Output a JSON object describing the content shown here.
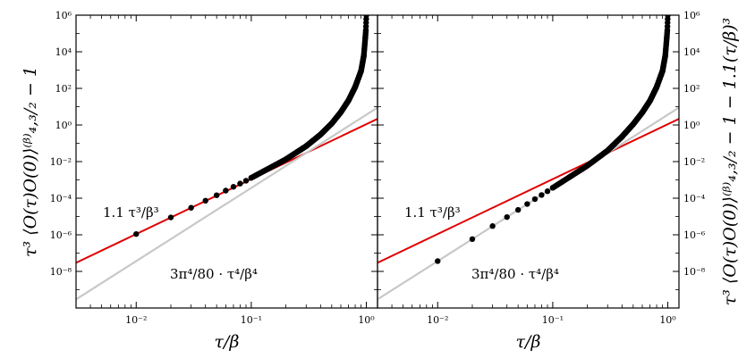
{
  "chart_data": [
    {
      "type": "scatter",
      "panel": "left",
      "xscale": "log",
      "yscale": "log",
      "xlim": [
        0.003,
        1.25
      ],
      "ylim": [
        1e-10,
        1000000.0
      ],
      "xlabel": "τ/β",
      "ylabel": "τ³ ⟨O(τ)O(0)⟩⁽ᵝ⁾₄,₃/₂ − 1",
      "x_ticks": [
        "10⁻²",
        "10⁻¹",
        "10⁰"
      ],
      "y_ticks": [
        "10⁻⁸",
        "10⁻⁶",
        "10⁻⁴",
        "10⁻²",
        "10⁰",
        "10²",
        "10⁴",
        "10⁶"
      ],
      "annotations": [
        {
          "text": "1.1 τ³/β³",
          "color": "#e00000"
        },
        {
          "text": "3π⁴/80 · τ⁴/β⁴",
          "color": "#b0b0b0"
        }
      ],
      "series": [
        {
          "kind": "line",
          "color": "#e00000",
          "coef": 1.1,
          "power": 3
        },
        {
          "kind": "line",
          "color": "#c8c8c8",
          "coef": 3.65,
          "power": 4
        },
        {
          "kind": "points",
          "color": "#000000",
          "x": [
            0.01,
            0.02,
            0.03,
            0.04,
            0.05,
            0.06,
            0.07,
            0.08,
            0.09,
            0.1,
            0.2,
            0.3,
            0.4,
            0.5,
            0.6,
            0.7,
            0.8,
            0.9,
            0.95,
            0.98,
            0.99,
            1.0
          ],
          "y": [
            1.1e-06,
            8.9e-06,
            3e-05,
            7.3e-05,
            0.000145,
            0.00026,
            0.00042,
            0.00063,
            0.0009,
            0.0013,
            0.0134,
            0.07,
            0.3,
            1.2,
            5,
            22,
            120,
            900,
            6000,
            60000,
            150000,
            1000000
          ]
        }
      ]
    },
    {
      "type": "scatter",
      "panel": "right",
      "xscale": "log",
      "yscale": "log",
      "xlim": [
        0.003,
        1.25
      ],
      "ylim": [
        1e-10,
        1000000.0
      ],
      "xlabel": "τ/β",
      "ylabel": "τ³ ⟨O(τ)O(0)⟩⁽ᵝ⁾₄,₃/₂ − 1 − 1.1(τ/β)³",
      "x_ticks": [
        "10⁻²",
        "10⁻¹",
        "10⁰"
      ],
      "y_ticks": [
        "10⁻⁸",
        "10⁻⁶",
        "10⁻⁴",
        "10⁻²",
        "10⁰",
        "10²",
        "10⁴",
        "10⁶"
      ],
      "annotations": [
        {
          "text": "1.1 τ³/β³",
          "color": "#e00000"
        },
        {
          "text": "3π⁴/80 · τ⁴/β⁴",
          "color": "#b0b0b0"
        }
      ],
      "series": [
        {
          "kind": "line",
          "color": "#e00000",
          "coef": 1.1,
          "power": 3
        },
        {
          "kind": "line",
          "color": "#c8c8c8",
          "coef": 3.65,
          "power": 4
        },
        {
          "kind": "points",
          "color": "#000000",
          "x": [
            0.01,
            0.02,
            0.03,
            0.04,
            0.05,
            0.06,
            0.07,
            0.08,
            0.09,
            0.1,
            0.2,
            0.3,
            0.4,
            0.5,
            0.6,
            0.7,
            0.8,
            0.9,
            0.95,
            0.98,
            0.99,
            1.0
          ],
          "y": [
            3.65e-08,
            5.8e-07,
            3e-06,
            9.3e-06,
            2.3e-05,
            4.8e-05,
            8.9e-05,
            0.00015,
            0.00024,
            0.00037,
            0.006,
            0.04,
            0.23,
            1.1,
            4.8,
            21,
            118,
            900,
            6000,
            60000,
            150000,
            1000000
          ]
        }
      ]
    }
  ]
}
